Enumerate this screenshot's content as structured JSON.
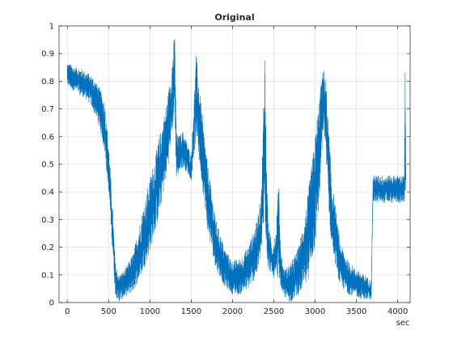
{
  "chart_data": {
    "type": "line",
    "title": "Original",
    "xlabel": "sec",
    "ylabel": "",
    "xlim": [
      -100,
      4150
    ],
    "ylim": [
      0,
      1
    ],
    "x_ticks": [
      0,
      500,
      1000,
      1500,
      2000,
      2500,
      3000,
      3500,
      4000
    ],
    "x_tick_labels": [
      "0",
      "500",
      "1000",
      "1500",
      "2000",
      "2500",
      "3000",
      "3500",
      "4000"
    ],
    "y_ticks": [
      0,
      0.1,
      0.2,
      0.3,
      0.4,
      0.5,
      0.6,
      0.7,
      0.8,
      0.9,
      1
    ],
    "y_tick_labels": [
      "0",
      "0.1",
      "0.2",
      "0.3",
      "0.4",
      "0.5",
      "0.6",
      "0.7",
      "0.8",
      "0.9",
      "1"
    ],
    "grid": true,
    "line_color": "#0072BD",
    "series": [
      {
        "upper": {
          "x": [
            0,
            50,
            100,
            150,
            200,
            250,
            300,
            350,
            400,
            450,
            500,
            550,
            580,
            620,
            700,
            800,
            900,
            1000,
            1100,
            1200,
            1250,
            1300,
            1320,
            1340,
            1400,
            1450,
            1500,
            1560,
            1580,
            1600,
            1650,
            1700,
            1800,
            1900,
            2000,
            2100,
            2200,
            2300,
            2350,
            2370,
            2390,
            2410,
            2430,
            2480,
            2530,
            2560,
            2580,
            2620,
            2700,
            2800,
            2900,
            3000,
            3050,
            3100,
            3130,
            3160,
            3200,
            3300,
            3400,
            3500,
            3600,
            3680,
            3700,
            3750,
            3800,
            3900,
            4000,
            4080,
            4090,
            4100
          ],
          "y": [
            0.87,
            0.86,
            0.85,
            0.85,
            0.84,
            0.83,
            0.82,
            0.8,
            0.77,
            0.73,
            0.58,
            0.33,
            0.15,
            0.1,
            0.12,
            0.18,
            0.32,
            0.45,
            0.58,
            0.72,
            0.82,
            0.98,
            0.62,
            0.6,
            0.62,
            0.58,
            0.53,
            0.9,
            0.84,
            0.78,
            0.63,
            0.5,
            0.3,
            0.2,
            0.15,
            0.16,
            0.21,
            0.3,
            0.4,
            0.65,
            0.95,
            0.55,
            0.3,
            0.2,
            0.27,
            0.5,
            0.2,
            0.12,
            0.14,
            0.2,
            0.36,
            0.6,
            0.75,
            0.85,
            0.82,
            0.65,
            0.45,
            0.22,
            0.15,
            0.12,
            0.1,
            0.08,
            0.46,
            0.46,
            0.46,
            0.46,
            0.46,
            0.46,
            0.86,
            0.46
          ]
        },
        "lower": {
          "x": [
            0,
            50,
            100,
            150,
            200,
            250,
            300,
            350,
            400,
            450,
            500,
            550,
            580,
            620,
            700,
            800,
            900,
            1000,
            1100,
            1200,
            1250,
            1300,
            1320,
            1340,
            1400,
            1450,
            1500,
            1560,
            1580,
            1600,
            1650,
            1700,
            1800,
            1900,
            2000,
            2100,
            2200,
            2300,
            2350,
            2370,
            2390,
            2410,
            2430,
            2480,
            2530,
            2560,
            2580,
            2620,
            2700,
            2800,
            2900,
            3000,
            3050,
            3100,
            3130,
            3160,
            3200,
            3300,
            3400,
            3500,
            3600,
            3680,
            3700,
            3750,
            3800,
            3900,
            4000,
            4080,
            4090,
            4100
          ],
          "y": [
            0.78,
            0.77,
            0.76,
            0.75,
            0.74,
            0.73,
            0.7,
            0.67,
            0.62,
            0.55,
            0.4,
            0.18,
            0.03,
            0.0,
            0.02,
            0.04,
            0.1,
            0.18,
            0.3,
            0.45,
            0.56,
            0.7,
            0.45,
            0.46,
            0.49,
            0.47,
            0.44,
            0.6,
            0.55,
            0.5,
            0.38,
            0.25,
            0.12,
            0.06,
            0.03,
            0.03,
            0.05,
            0.1,
            0.18,
            0.22,
            0.3,
            0.2,
            0.12,
            0.1,
            0.07,
            0.1,
            0.06,
            0.02,
            0.0,
            0.03,
            0.06,
            0.2,
            0.35,
            0.62,
            0.55,
            0.35,
            0.2,
            0.06,
            0.03,
            0.02,
            0.01,
            0.01,
            0.36,
            0.36,
            0.36,
            0.36,
            0.36,
            0.36,
            0.4,
            0.36
          ]
        }
      }
    ]
  }
}
